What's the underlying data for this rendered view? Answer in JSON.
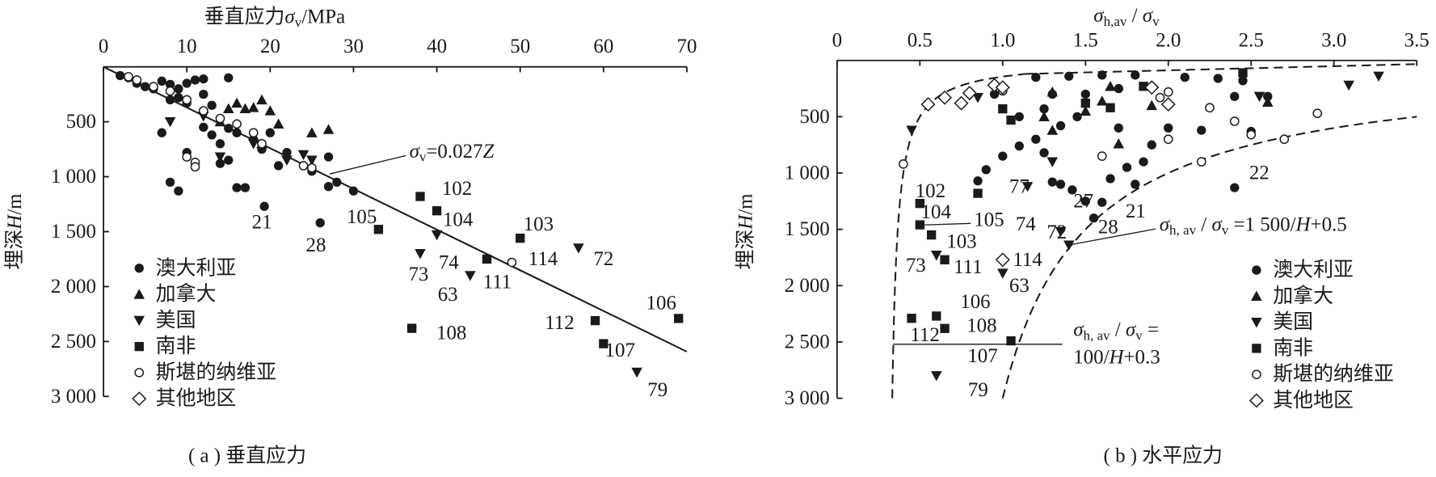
{
  "chart_data": [
    {
      "type": "scatter",
      "caption": "( a ) 垂直应力",
      "x_label": [
        [
          {
            "t": "垂直应力",
            "s": "n"
          },
          {
            "t": "σ",
            "s": "i"
          },
          {
            "t": "v",
            "s": "sub"
          },
          {
            "t": "/MPa",
            "s": "n"
          }
        ]
      ],
      "y_label": [
        [
          {
            "t": "埋深",
            "s": "n"
          },
          {
            "t": "H",
            "s": "i"
          },
          {
            "t": "/m",
            "s": "n"
          }
        ]
      ],
      "xlim": [
        0,
        70
      ],
      "xticks": [
        0,
        10,
        20,
        30,
        40,
        50,
        60,
        70
      ],
      "ylim": [
        0,
        3000
      ],
      "y_inverted": true,
      "yticks": [
        500,
        {
          "value": 1000,
          "label": "1 000"
        },
        {
          "value": 1500,
          "label": "1 500"
        },
        {
          "value": 2000,
          "label": "2 000"
        },
        {
          "value": 2500,
          "label": "2 500"
        },
        {
          "value": 3000,
          "label": "3 000"
        }
      ],
      "legend": "lower left",
      "color": "#1a1a1a",
      "series": [
        {
          "name": "澳大利亚",
          "marker": "circle",
          "x": [
            2,
            3,
            4,
            5,
            6,
            7,
            8,
            9,
            10,
            11,
            12,
            15,
            8,
            9,
            10,
            12,
            13,
            7,
            12,
            13,
            14,
            15,
            14,
            10,
            8,
            9,
            16,
            17,
            19.3,
            21,
            22,
            26,
            27,
            28,
            27,
            30,
            25,
            16,
            18,
            19,
            20,
            15
          ],
          "values": [
            80,
            100,
            150,
            180,
            200,
            130,
            160,
            200,
            150,
            120,
            110,
            100,
            300,
            280,
            330,
            250,
            350,
            600,
            550,
            620,
            700,
            560,
            880,
            780,
            1050,
            1130,
            1100,
            1100,
            1270,
            900,
            780,
            1420,
            820,
            1050,
            1090,
            1130,
            950,
            600,
            660,
            750,
            600,
            850
          ]
        },
        {
          "name": "加拿大",
          "marker": "triangle-up",
          "x": [
            16,
            17,
            18,
            19,
            20,
            21,
            19,
            25,
            27,
            14,
            15
          ],
          "values": [
            330,
            380,
            370,
            300,
            400,
            520,
            700,
            600,
            570,
            500,
            380
          ]
        },
        {
          "name": "美国",
          "marker": "triangle-down",
          "x": [
            8,
            12,
            14,
            22,
            24,
            25,
            38,
            40,
            44,
            57,
            64,
            18
          ],
          "values": [
            500,
            450,
            820,
            850,
            800,
            850,
            1700,
            1530,
            1900,
            1650,
            2780,
            700
          ]
        },
        {
          "name": "南非",
          "marker": "square",
          "x": [
            33,
            38,
            40,
            46,
            50,
            59,
            60,
            69,
            37
          ],
          "values": [
            1480,
            1180,
            1310,
            1750,
            1560,
            2310,
            2520,
            2290,
            2380
          ]
        },
        {
          "name": "斯堪的纳维亚",
          "marker": "open-circle",
          "x": [
            3,
            4,
            6,
            8,
            10,
            12,
            14,
            16,
            18,
            19,
            10,
            11,
            11,
            24,
            25,
            49
          ],
          "values": [
            90,
            120,
            180,
            220,
            300,
            400,
            470,
            520,
            600,
            700,
            820,
            870,
            910,
            900,
            920,
            1780
          ]
        },
        {
          "name": "其他地区",
          "marker": "diamond",
          "x": [],
          "values": []
        }
      ],
      "fit": {
        "coef": 0.027,
        "label": [
          [
            {
              "t": "σ",
              "s": "i"
            },
            {
              "t": "v",
              "s": "sub"
            },
            {
              "t": "=0.027",
              "s": "n"
            },
            {
              "t": "Z",
              "s": "i"
            }
          ]
        ]
      },
      "annotations": [
        "21",
        "28",
        "105",
        "102",
        "104",
        "103",
        "114",
        "72",
        "73",
        "74",
        "63",
        "111",
        "106",
        "112",
        "107",
        "79",
        "108"
      ]
    },
    {
      "type": "scatter",
      "caption": "( b ) 水平应力",
      "x_label": [
        [
          {
            "t": "σ",
            "s": "i"
          },
          {
            "t": "h,av",
            "s": "sub"
          },
          {
            "t": " / ",
            "s": "n"
          },
          {
            "t": "σ",
            "s": "i"
          },
          {
            "t": "v",
            "s": "sub"
          }
        ]
      ],
      "y_label": [
        [
          {
            "t": "埋深",
            "s": "n"
          },
          {
            "t": "H",
            "s": "i"
          },
          {
            "t": "/m",
            "s": "n"
          }
        ]
      ],
      "xlim": [
        0,
        3.5
      ],
      "xticks": [
        0,
        0.5,
        {
          "value": 1,
          "label": "1.0"
        },
        1.5,
        {
          "value": 2,
          "label": "2.0"
        },
        2.5,
        {
          "value": 3,
          "label": "3.0"
        },
        3.5
      ],
      "ylim": [
        0,
        3000
      ],
      "y_inverted": true,
      "yticks": [
        500,
        {
          "value": 1000,
          "label": "1 000"
        },
        {
          "value": 1500,
          "label": "1 500"
        },
        {
          "value": 2000,
          "label": "2 000"
        },
        {
          "value": 2500,
          "label": "2 500"
        },
        {
          "value": 3000,
          "label": "3 000"
        }
      ],
      "legend": "lower right",
      "color": "#1a1a1a",
      "series": [
        {
          "name": "澳大利亚",
          "marker": "circle",
          "x": [
            0.9,
            1.0,
            1.1,
            1.2,
            1.25,
            1.3,
            1.35,
            1.42,
            1.5,
            1.55,
            1.6,
            1.65,
            1.75,
            1.8,
            1.9,
            2.0,
            1.35,
            1.45,
            1.25,
            1.3,
            1.4,
            1.6,
            1.8,
            2.1,
            2.3,
            2.45,
            2.6,
            2.4,
            1.5,
            1.7,
            2.0,
            1.2,
            0.95,
            1.1,
            0.85,
            2.4,
            1.85,
            1.7,
            2.2,
            2.5
          ],
          "values": [
            970,
            850,
            760,
            700,
            820,
            1080,
            1100,
            1150,
            1250,
            1400,
            1260,
            1050,
            950,
            1100,
            750,
            600,
            580,
            500,
            430,
            300,
            140,
            130,
            130,
            150,
            160,
            180,
            320,
            320,
            300,
            250,
            280,
            150,
            300,
            500,
            1070,
            1130,
            900,
            600,
            620,
            630
          ]
        },
        {
          "name": "加拿大",
          "marker": "triangle-up",
          "x": [
            1.25,
            1.3,
            1.5,
            1.6,
            1.65,
            1.7,
            1.9,
            2.6,
            1.3
          ],
          "values": [
            500,
            620,
            450,
            360,
            230,
            740,
            400,
            370,
            280
          ]
        },
        {
          "name": "美国",
          "marker": "triangle-down",
          "x": [
            0.45,
            0.85,
            1.15,
            1.3,
            1.35,
            1.4,
            0.6,
            1.0,
            0.6,
            3.27,
            3.09,
            2.55
          ],
          "values": [
            620,
            330,
            1120,
            900,
            1520,
            1640,
            1730,
            1890,
            2800,
            140,
            220,
            320
          ]
        },
        {
          "name": "南非",
          "marker": "square",
          "x": [
            0.5,
            0.5,
            0.57,
            0.65,
            0.85,
            0.45,
            0.6,
            0.65,
            1.05,
            1.0,
            1.05,
            1.5,
            2.45,
            1.85,
            1.65
          ],
          "values": [
            1270,
            1460,
            1550,
            1770,
            1180,
            2290,
            2270,
            2380,
            2490,
            430,
            530,
            380,
            110,
            230,
            420
          ]
        },
        {
          "name": "斯堪的纳维亚",
          "marker": "open-circle",
          "x": [
            0.4,
            1.6,
            2.0,
            2.2,
            2.25,
            2.4,
            2.5,
            2.7,
            2.9,
            2.0,
            1.95,
            1.0
          ],
          "values": [
            920,
            850,
            700,
            900,
            420,
            540,
            660,
            700,
            470,
            280,
            330,
            270
          ]
        },
        {
          "name": "其他地区",
          "marker": "diamond",
          "x": [
            0.55,
            0.65,
            0.75,
            0.8,
            0.95,
            1.0,
            1.9,
            2.0,
            1.0
          ],
          "values": [
            390,
            330,
            380,
            290,
            220,
            240,
            240,
            390,
            1770
          ]
        }
      ],
      "curves": [
        {
          "a": 1500,
          "b": 0.5,
          "label": [
            [
              {
                "t": "σ",
                "s": "i"
              },
              {
                "t": "h, av",
                "s": "sub"
              },
              {
                "t": " / ",
                "s": "n"
              },
              {
                "t": "σ",
                "s": "i"
              },
              {
                "t": "v",
                "s": "sub"
              },
              {
                "t": " =1 500/",
                "s": "n"
              },
              {
                "t": "H",
                "s": "i"
              },
              {
                "t": "+0.5",
                "s": "n"
              }
            ]
          ]
        },
        {
          "a": 100,
          "b": 0.3,
          "label": [
            [
              {
                "t": "σ",
                "s": "i"
              },
              {
                "t": "h, av",
                "s": "sub"
              },
              {
                "t": " / ",
                "s": "n"
              },
              {
                "t": "σ",
                "s": "i"
              },
              {
                "t": "v",
                "s": "sub"
              },
              {
                "t": " =",
                "s": "n"
              }
            ],
            [
              {
                "t": "100/",
                "s": "n"
              },
              {
                "t": "H",
                "s": "i"
              },
              {
                "t": "+0.3",
                "s": "n"
              }
            ]
          ]
        }
      ],
      "annotations": [
        "102",
        "104",
        "105",
        "103",
        "73",
        "111",
        "114",
        "63",
        "77",
        "74",
        "72",
        "27",
        "28",
        "21",
        "22",
        "106",
        "108",
        "112",
        "107",
        "79"
      ]
    }
  ]
}
